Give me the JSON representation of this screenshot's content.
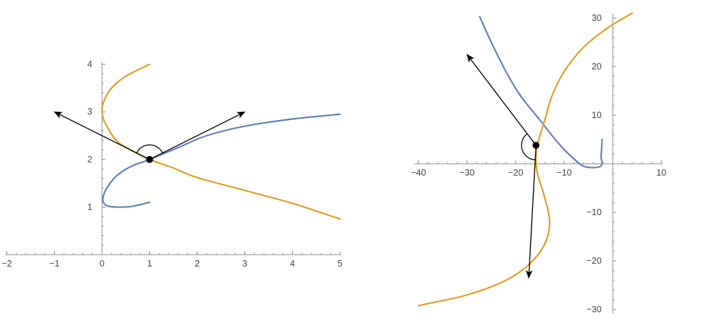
{
  "colors": {
    "curve1": "#5E81B5",
    "curve2": "#E19C24",
    "axis": "#888888",
    "arrow": "#000000",
    "point": "#000000"
  },
  "chart_data": [
    {
      "type": "line",
      "title": "",
      "xlabel": "",
      "ylabel": "",
      "xlim": [
        -2,
        5
      ],
      "ylim": [
        0,
        4
      ],
      "grid": false,
      "x_ticks": [
        -2,
        -1,
        0,
        1,
        2,
        3,
        4,
        5
      ],
      "y_ticks": [
        1,
        2,
        3,
        4
      ],
      "x_tick_labels": [
        "−2",
        "−1",
        "0",
        "1",
        "2",
        "3",
        "4",
        "5"
      ],
      "y_tick_labels": [
        "1",
        "2",
        "3",
        "4"
      ],
      "series": [
        {
          "color": "curve1",
          "points": [
            [
              1,
              1.1
            ],
            [
              0.6,
              1.01
            ],
            [
              0.3,
              1.0
            ],
            [
              0.1,
              1.03
            ],
            [
              0.03,
              1.1
            ],
            [
              0.02,
              1.2
            ],
            [
              0.1,
              1.4
            ],
            [
              0.3,
              1.65
            ],
            [
              0.6,
              1.85
            ],
            [
              1,
              2
            ],
            [
              1.6,
              2.25
            ],
            [
              2.2,
              2.5
            ],
            [
              3,
              2.7
            ],
            [
              4,
              2.85
            ],
            [
              5,
              2.95
            ]
          ]
        },
        {
          "color": "curve2",
          "points": [
            [
              1,
              4
            ],
            [
              0.5,
              3.75
            ],
            [
              0.2,
              3.5
            ],
            [
              0.05,
              3.25
            ],
            [
              0,
              3.05
            ],
            [
              0.05,
              2.8
            ],
            [
              0.3,
              2.4
            ],
            [
              0.6,
              2.2
            ],
            [
              1,
              2
            ],
            [
              1.5,
              1.82
            ],
            [
              2,
              1.62
            ],
            [
              3,
              1.35
            ],
            [
              4,
              1.08
            ],
            [
              5,
              0.75
            ]
          ]
        }
      ],
      "intersection": [
        1,
        2
      ],
      "arrows": [
        {
          "from": [
            1,
            2
          ],
          "to": [
            -1,
            3
          ]
        },
        {
          "from": [
            1,
            2
          ],
          "to": [
            3,
            3
          ]
        }
      ],
      "angle_arc": {
        "center": [
          1,
          2
        ],
        "from_deg": 26.6,
        "to_deg": 153.4
      }
    },
    {
      "type": "line",
      "title": "",
      "xlabel": "",
      "ylabel": "",
      "xlim": [
        -40,
        10
      ],
      "ylim": [
        -30,
        30
      ],
      "grid": false,
      "x_ticks": [
        -40,
        -30,
        -20,
        -10,
        10
      ],
      "y_ticks": [
        -30,
        -20,
        -10,
        10,
        20,
        30
      ],
      "x_tick_labels": [
        "−40",
        "−30",
        "−20",
        "−10",
        "10"
      ],
      "y_tick_labels": [
        "−30",
        "−20",
        "−10",
        "10",
        "20",
        "30"
      ],
      "series": [
        {
          "color": "curve1",
          "points": [
            [
              -27.4,
              30.3
            ],
            [
              -25,
              25
            ],
            [
              -22,
              19
            ],
            [
              -19,
              14
            ],
            [
              -15,
              9
            ],
            [
              -11,
              4
            ],
            [
              -8,
              1
            ],
            [
              -6,
              -0.5
            ],
            [
              -4,
              -0.8
            ],
            [
              -2.5,
              -0.5
            ],
            [
              -2.2,
              0.3
            ],
            [
              -2.4,
              1.2
            ],
            [
              -2.3,
              3
            ],
            [
              -2.2,
              5
            ]
          ]
        },
        {
          "color": "curve2",
          "points": [
            [
              -40,
              -29.2
            ],
            [
              -30,
              -27
            ],
            [
              -22,
              -24
            ],
            [
              -17,
              -20.5
            ],
            [
              -14,
              -16.5
            ],
            [
              -13,
              -12
            ],
            [
              -14,
              -7
            ],
            [
              -15.5,
              -2
            ],
            [
              -15.8,
              1
            ],
            [
              -15.5,
              4
            ],
            [
              -14,
              9
            ],
            [
              -12.5,
              14
            ],
            [
              -10,
              19
            ],
            [
              -6,
              24
            ],
            [
              -1,
              28
            ],
            [
              4,
              31
            ]
          ]
        }
      ],
      "intersection": [
        -15.8,
        3.8
      ],
      "arrows": [
        {
          "from": [
            -15.8,
            3.8
          ],
          "to": [
            -30,
            22.5
          ]
        },
        {
          "from": [
            -15.8,
            3.8
          ],
          "to": [
            -17.3,
            -23.5
          ]
        }
      ],
      "angle_arc": {
        "center": [
          -15.8,
          3.8
        ],
        "from_deg": 127,
        "to_deg": 266
      }
    }
  ]
}
